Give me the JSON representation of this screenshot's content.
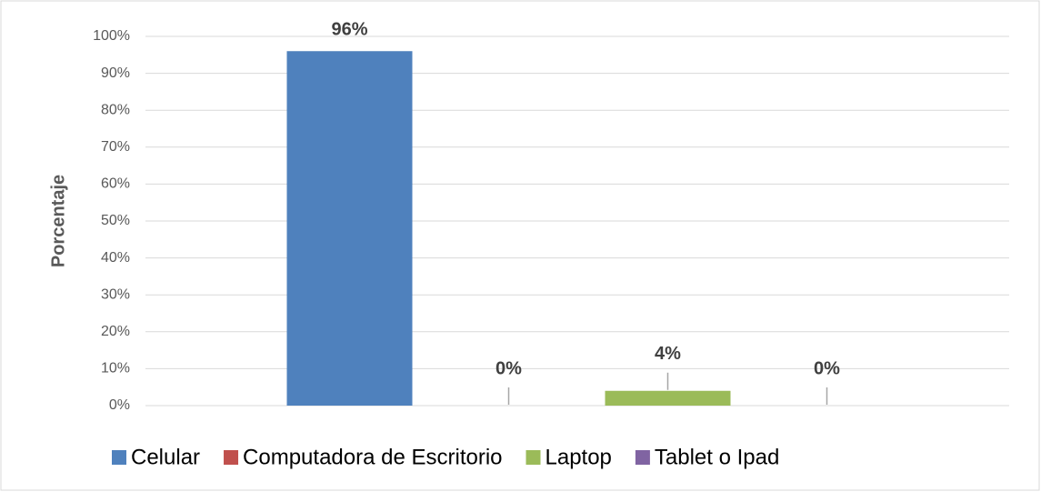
{
  "chart_data": {
    "type": "bar",
    "y_label": "Porcentaje",
    "categories": [
      null
    ],
    "series": [
      {
        "name": "Celular",
        "color": "#4f81bd",
        "values": [
          96
        ],
        "value_labels": [
          "96%"
        ]
      },
      {
        "name": "Computadora de Escritorio",
        "color": "#c0504d",
        "values": [
          0
        ],
        "value_labels": [
          "0%"
        ]
      },
      {
        "name": "Laptop",
        "color": "#9bbb59",
        "values": [
          4
        ],
        "value_labels": [
          "4%"
        ]
      },
      {
        "name": "Tablet o Ipad",
        "color": "#8064a2",
        "values": [
          0
        ],
        "value_labels": [
          "0%"
        ]
      }
    ],
    "ylim": [
      0,
      100
    ],
    "yticks": [
      {
        "value": 0,
        "label": "0%"
      },
      {
        "value": 10,
        "label": "10%"
      },
      {
        "value": 20,
        "label": "20%"
      },
      {
        "value": 30,
        "label": "30%"
      },
      {
        "value": 40,
        "label": "40%"
      },
      {
        "value": 50,
        "label": "50%"
      },
      {
        "value": 60,
        "label": "60%"
      },
      {
        "value": 70,
        "label": "70%"
      },
      {
        "value": 80,
        "label": "80%"
      },
      {
        "value": 90,
        "label": "90%"
      },
      {
        "value": 100,
        "label": "100%"
      }
    ],
    "grid": true,
    "legend": "bottom"
  }
}
